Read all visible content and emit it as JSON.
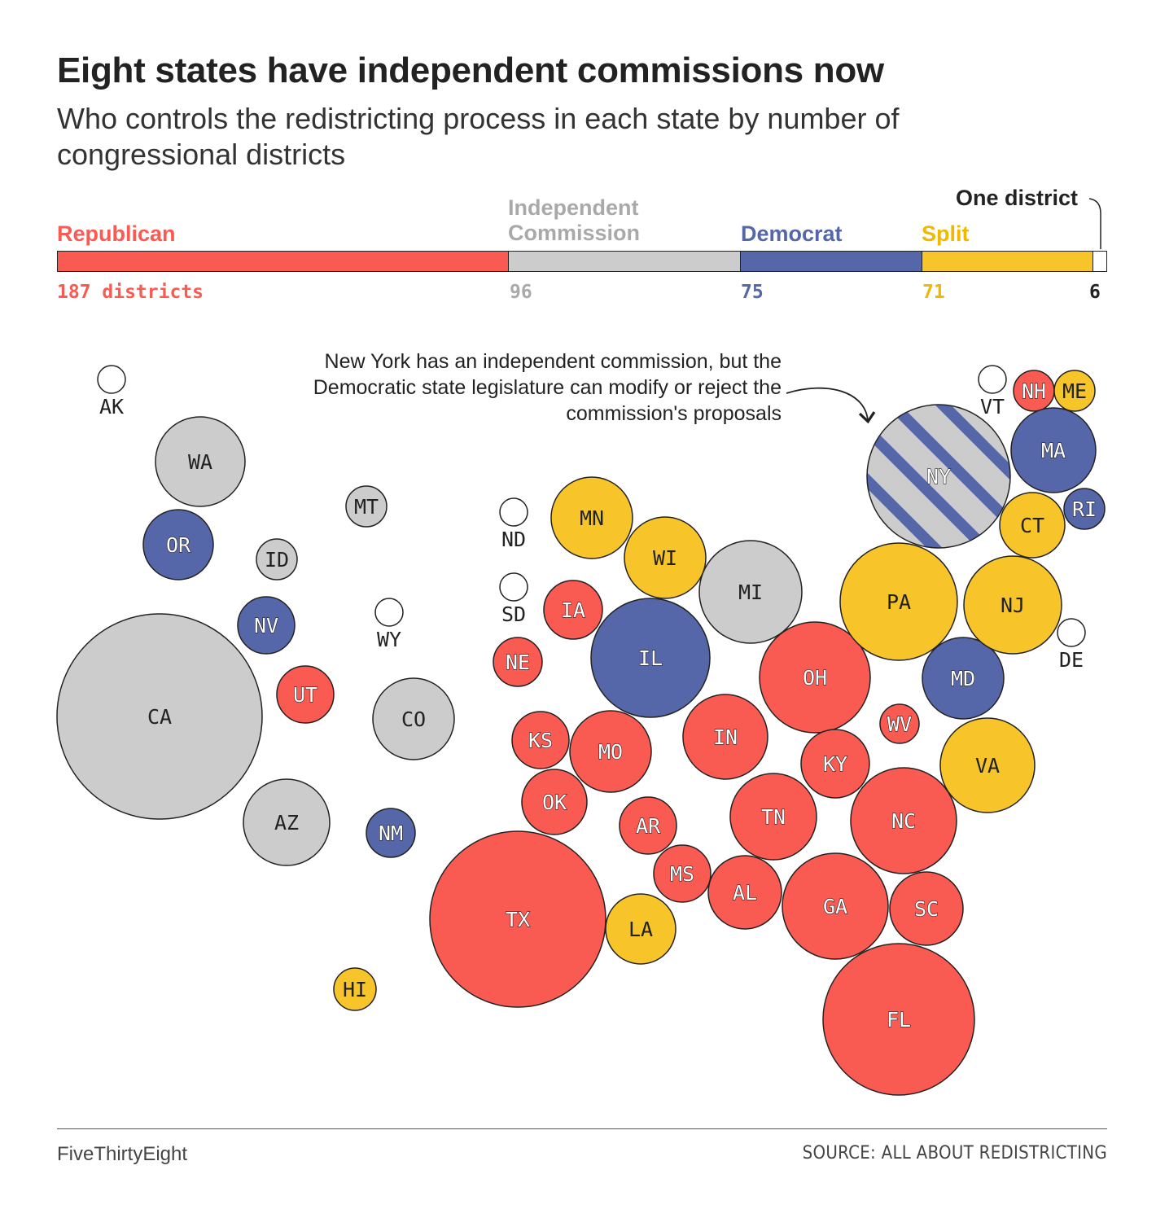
{
  "title": "Eight states have independent commissions now",
  "subtitle": "Who controls the redistricting process in each state by number of congressional districts",
  "legend": {
    "republican": "Republican",
    "independent": "Independent Commission",
    "democrat": "Democrat",
    "split": "Split",
    "one_district": "One district"
  },
  "counts": {
    "republican": "187 districts",
    "independent": "96",
    "democrat": "75",
    "split": "71",
    "one_district": "6"
  },
  "colors": {
    "republican": "#f95a52",
    "independent": "#cccccc",
    "democrat": "#5667a9",
    "split": "#f7c52a",
    "one": "#ffffff"
  },
  "annotation": "New York has an independent commission, but the Democratic state legislature can modify or reject the commission's proposals",
  "footer": {
    "brand": "FiveThirtyEight",
    "source": "SOURCE: ALL ABOUT REDISTRICTING"
  },
  "chart_data": {
    "type": "bubble-map",
    "categories": [
      "Republican",
      "Independent Commission",
      "Democrat",
      "Split",
      "One district"
    ],
    "totals": [
      187,
      96,
      75,
      71,
      6
    ],
    "states": [
      {
        "state": "AK",
        "control": "one",
        "districts": 1
      },
      {
        "state": "WA",
        "control": "independent",
        "districts": 10
      },
      {
        "state": "OR",
        "control": "democrat",
        "districts": 6
      },
      {
        "state": "ID",
        "control": "independent",
        "districts": 2
      },
      {
        "state": "MT",
        "control": "independent",
        "districts": 2
      },
      {
        "state": "NV",
        "control": "democrat",
        "districts": 4
      },
      {
        "state": "WY",
        "control": "one",
        "districts": 1
      },
      {
        "state": "CA",
        "control": "independent",
        "districts": 52
      },
      {
        "state": "UT",
        "control": "republican",
        "districts": 4
      },
      {
        "state": "CO",
        "control": "independent",
        "districts": 8
      },
      {
        "state": "AZ",
        "control": "independent",
        "districts": 9
      },
      {
        "state": "NM",
        "control": "democrat",
        "districts": 3
      },
      {
        "state": "HI",
        "control": "split",
        "districts": 2
      },
      {
        "state": "ND",
        "control": "one",
        "districts": 1
      },
      {
        "state": "SD",
        "control": "one",
        "districts": 1
      },
      {
        "state": "MN",
        "control": "split",
        "districts": 8
      },
      {
        "state": "WI",
        "control": "split",
        "districts": 8
      },
      {
        "state": "MI",
        "control": "independent",
        "districts": 13
      },
      {
        "state": "IA",
        "control": "republican",
        "districts": 4
      },
      {
        "state": "NE",
        "control": "republican",
        "districts": 3
      },
      {
        "state": "IL",
        "control": "democrat",
        "districts": 17
      },
      {
        "state": "KS",
        "control": "republican",
        "districts": 4
      },
      {
        "state": "MO",
        "control": "republican",
        "districts": 8
      },
      {
        "state": "OK",
        "control": "republican",
        "districts": 5
      },
      {
        "state": "AR",
        "control": "republican",
        "districts": 4
      },
      {
        "state": "MS",
        "control": "republican",
        "districts": 4
      },
      {
        "state": "TX",
        "control": "republican",
        "districts": 38
      },
      {
        "state": "LA",
        "control": "split",
        "districts": 6
      },
      {
        "state": "IN",
        "control": "republican",
        "districts": 9
      },
      {
        "state": "OH",
        "control": "republican",
        "districts": 15
      },
      {
        "state": "KY",
        "control": "republican",
        "districts": 6
      },
      {
        "state": "TN",
        "control": "republican",
        "districts": 9
      },
      {
        "state": "AL",
        "control": "republican",
        "districts": 7
      },
      {
        "state": "GA",
        "control": "republican",
        "districts": 14
      },
      {
        "state": "FL",
        "control": "republican",
        "districts": 28
      },
      {
        "state": "SC",
        "control": "republican",
        "districts": 7
      },
      {
        "state": "NC",
        "control": "republican",
        "districts": 14
      },
      {
        "state": "WV",
        "control": "republican",
        "districts": 2
      },
      {
        "state": "VA",
        "control": "split",
        "districts": 11
      },
      {
        "state": "MD",
        "control": "democrat",
        "districts": 8
      },
      {
        "state": "PA",
        "control": "split",
        "districts": 17
      },
      {
        "state": "NJ",
        "control": "split",
        "districts": 12
      },
      {
        "state": "DE",
        "control": "one",
        "districts": 1
      },
      {
        "state": "NY",
        "control": "independent-democrat",
        "districts": 26
      },
      {
        "state": "VT",
        "control": "one",
        "districts": 1
      },
      {
        "state": "NH",
        "control": "republican",
        "districts": 2
      },
      {
        "state": "ME",
        "control": "split",
        "districts": 2
      },
      {
        "state": "MA",
        "control": "democrat",
        "districts": 9
      },
      {
        "state": "RI",
        "control": "democrat",
        "districts": 2
      },
      {
        "state": "CT",
        "control": "split",
        "districts": 5
      }
    ]
  }
}
